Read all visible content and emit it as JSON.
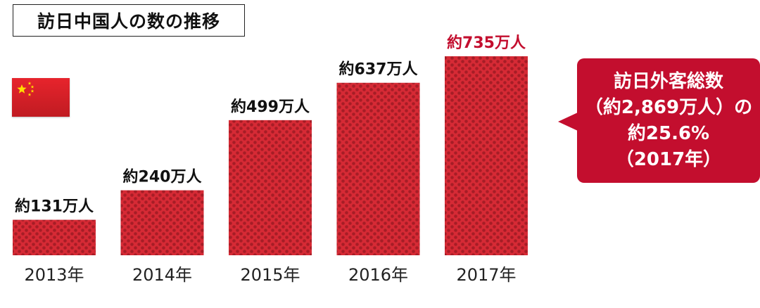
{
  "header": {
    "title": "訪日中国人の数の推移"
  },
  "callout": {
    "lines": [
      "訪日外客総数",
      "（約2,869万人）の",
      "約25.6%",
      "（2017年）"
    ],
    "color": "#c30e2e"
  },
  "colors": {
    "bar": "#d62a35",
    "bar_dot": "#9e1a22",
    "label": "#111111",
    "highlight_label": "#c30e2e",
    "year": "#222222"
  },
  "flag_icon": "china-flag-icon",
  "chart_data": {
    "type": "bar",
    "title": "訪日中国人の数の推移",
    "categories": [
      "2013年",
      "2014年",
      "2015年",
      "2016年",
      "2017年"
    ],
    "values": [
      131,
      240,
      499,
      637,
      735
    ],
    "value_labels": [
      "約131万人",
      "約240万人",
      "約499万人",
      "約637万人",
      "約735万人"
    ],
    "unit": "万人",
    "highlight_index": 4,
    "xlabel": "",
    "ylabel": "",
    "ylim": [
      0,
      735
    ],
    "grid": false
  }
}
